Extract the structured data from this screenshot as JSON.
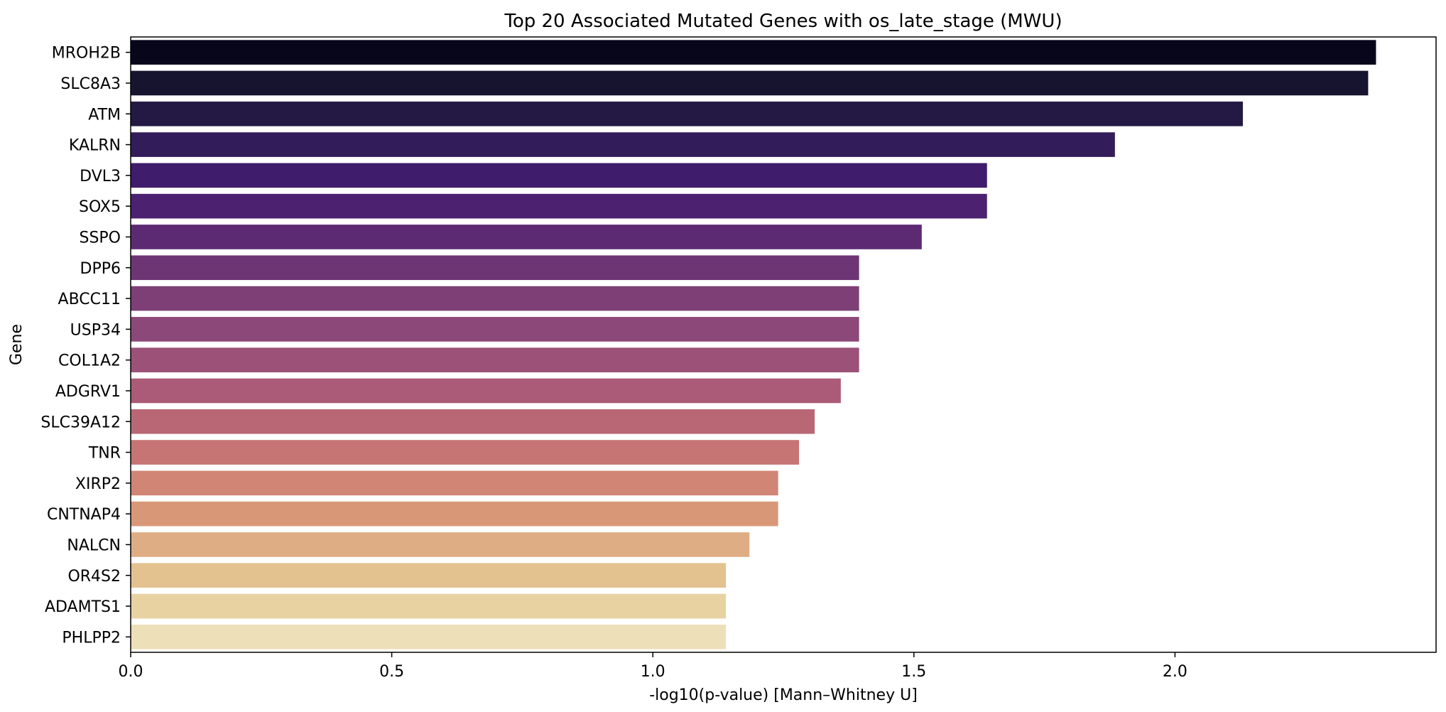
{
  "chart_data": {
    "type": "bar",
    "orientation": "horizontal",
    "title": "Top 20 Associated Mutated Genes with os_late_stage (MWU)",
    "xlabel": "-log10(p-value) [Mann–Whitney U]",
    "ylabel": "Gene",
    "xlim": [
      0,
      2.5
    ],
    "xticks": [
      "0.0",
      "0.5",
      "1.0",
      "1.5",
      "2.0"
    ],
    "xtick_values": [
      0,
      0.5,
      1.0,
      1.5,
      2.0
    ],
    "grid": false,
    "categories": [
      "MROH2B",
      "SLC8A3",
      "ATM",
      "KALRN",
      "DVL3",
      "SOX5",
      "SSPO",
      "DPP6",
      "ABCC11",
      "USP34",
      "COL1A2",
      "ADGRV1",
      "SLC39A12",
      "TNR",
      "XIRP2",
      "CNTNAP4",
      "NALCN",
      "OR4S2",
      "ADAMTS1",
      "PHLPP2"
    ],
    "values": [
      2.385,
      2.37,
      2.13,
      1.885,
      1.64,
      1.64,
      1.515,
      1.395,
      1.395,
      1.395,
      1.395,
      1.36,
      1.31,
      1.28,
      1.24,
      1.24,
      1.185,
      1.14,
      1.14,
      1.14
    ],
    "colors": [
      "#07061a",
      "#17142f",
      "#241944",
      "#321c5a",
      "#3f1c6c",
      "#4b2170",
      "#5c2a72",
      "#6d3574",
      "#7d3f76",
      "#8c4878",
      "#9b5178",
      "#ab5b77",
      "#b96775",
      "#c67474",
      "#d08575",
      "#d89878",
      "#dfad83",
      "#e4c290",
      "#e8d2a2",
      "#ede0b8"
    ]
  }
}
